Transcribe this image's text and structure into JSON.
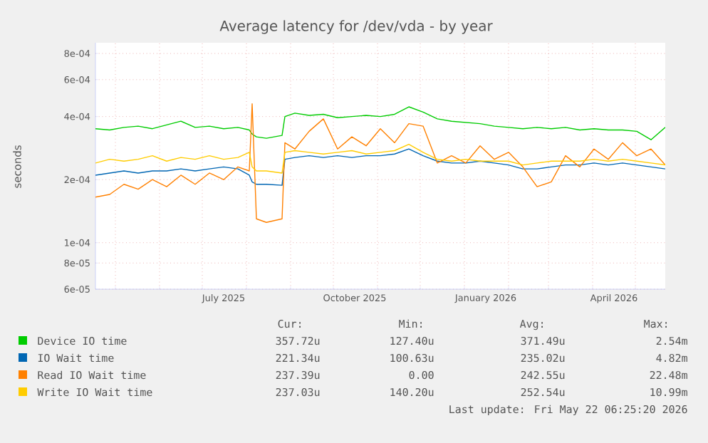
{
  "chart_data": {
    "type": "line",
    "title": "Average latency for /dev/vda - by year",
    "ylabel": "seconds",
    "log": true,
    "grid": true,
    "legend": "bottom",
    "xlim": [
      "2025-04-17",
      "2026-05-22"
    ],
    "ylim": [
      6e-05,
      0.0009
    ],
    "yticks": [
      {
        "value": 6e-05,
        "label": "6e-05"
      },
      {
        "value": 8e-05,
        "label": "8e-05"
      },
      {
        "value": 0.0001,
        "label": "1e-04"
      },
      {
        "value": 0.0002,
        "label": "2e-04"
      },
      {
        "value": 0.0004,
        "label": "4e-04"
      },
      {
        "value": 0.0006,
        "label": "6e-04"
      },
      {
        "value": 0.0008,
        "label": "8e-04"
      }
    ],
    "xticks": [
      {
        "value": "2025-05-01",
        "label": null
      },
      {
        "value": "2025-06-01",
        "label": null
      },
      {
        "value": "2025-07-01",
        "label": null
      },
      {
        "value": "2025-08-01",
        "label": null
      },
      {
        "value": "2025-09-01",
        "label": null
      },
      {
        "value": "2025-10-01",
        "label": null
      },
      {
        "value": "2025-11-01",
        "label": null
      },
      {
        "value": "2025-12-01",
        "label": null
      },
      {
        "value": "2026-01-01",
        "label": null
      },
      {
        "value": "2026-02-01",
        "label": null
      },
      {
        "value": "2026-03-01",
        "label": null
      },
      {
        "value": "2026-04-01",
        "label": null
      },
      {
        "value": "2026-05-01",
        "label": null
      },
      {
        "value": "2025-07-16",
        "label": "July 2025"
      },
      {
        "value": "2025-10-16",
        "label": "October 2025"
      },
      {
        "value": "2026-01-16",
        "label": "January 2026"
      },
      {
        "value": "2026-04-16",
        "label": "April 2026"
      }
    ],
    "x": [
      "2025-04-17",
      "2025-04-27",
      "2025-05-07",
      "2025-05-17",
      "2025-05-27",
      "2025-06-06",
      "2025-06-16",
      "2025-06-26",
      "2025-07-06",
      "2025-07-16",
      "2025-07-26",
      "2025-08-03",
      "2025-08-05",
      "2025-08-08",
      "2025-08-15",
      "2025-08-26",
      "2025-08-28",
      "2025-09-04",
      "2025-09-14",
      "2025-09-24",
      "2025-10-04",
      "2025-10-14",
      "2025-10-24",
      "2025-11-03",
      "2025-11-13",
      "2025-11-23",
      "2025-12-03",
      "2025-12-13",
      "2025-12-23",
      "2026-01-02",
      "2026-01-12",
      "2026-01-22",
      "2026-02-01",
      "2026-02-11",
      "2026-02-21",
      "2026-03-03",
      "2026-03-13",
      "2026-03-23",
      "2026-04-02",
      "2026-04-12",
      "2026-04-22",
      "2026-05-02",
      "2026-05-12",
      "2026-05-22"
    ],
    "series": [
      {
        "name": "Device IO time",
        "color": "#00cc00",
        "values": [
          0.00035,
          0.000345,
          0.000355,
          0.00036,
          0.00035,
          0.000365,
          0.00038,
          0.000355,
          0.00036,
          0.00035,
          0.000355,
          0.000345,
          0.00033,
          0.00032,
          0.000315,
          0.000325,
          0.0004,
          0.000415,
          0.000405,
          0.00041,
          0.000395,
          0.0004,
          0.000405,
          0.0004,
          0.00041,
          0.000445,
          0.00042,
          0.00039,
          0.00038,
          0.000375,
          0.00037,
          0.00036,
          0.000355,
          0.00035,
          0.000355,
          0.00035,
          0.000355,
          0.000345,
          0.00035,
          0.000345,
          0.000345,
          0.00034,
          0.00031,
          0.000355
        ]
      },
      {
        "name": "IO Wait time",
        "color": "#0066b3",
        "values": [
          0.00021,
          0.000215,
          0.00022,
          0.000215,
          0.00022,
          0.00022,
          0.000225,
          0.00022,
          0.000225,
          0.00023,
          0.000225,
          0.00021,
          0.000195,
          0.00019,
          0.00019,
          0.000188,
          0.00025,
          0.000255,
          0.00026,
          0.000255,
          0.00026,
          0.000255,
          0.00026,
          0.00026,
          0.000265,
          0.00028,
          0.00026,
          0.000245,
          0.00024,
          0.00024,
          0.000245,
          0.00024,
          0.000235,
          0.000225,
          0.000225,
          0.00023,
          0.000235,
          0.000235,
          0.00024,
          0.000235,
          0.00024,
          0.000235,
          0.00023,
          0.000225
        ]
      },
      {
        "name": "Read IO Wait time",
        "color": "#ff8000",
        "values": [
          0.000165,
          0.00017,
          0.00019,
          0.00018,
          0.0002,
          0.000185,
          0.00021,
          0.00019,
          0.000215,
          0.0002,
          0.00023,
          0.00022,
          0.00046,
          0.00013,
          0.000125,
          0.00013,
          0.0003,
          0.00028,
          0.00034,
          0.00039,
          0.00028,
          0.00032,
          0.00029,
          0.00035,
          0.0003,
          0.00037,
          0.00036,
          0.00024,
          0.00026,
          0.00024,
          0.00029,
          0.00025,
          0.00027,
          0.00023,
          0.000185,
          0.000195,
          0.00026,
          0.00023,
          0.00028,
          0.00025,
          0.0003,
          0.00026,
          0.00028,
          0.000235
        ]
      },
      {
        "name": "Write IO Wait time",
        "color": "#ffcc00",
        "values": [
          0.00024,
          0.00025,
          0.000245,
          0.00025,
          0.00026,
          0.000245,
          0.000255,
          0.00025,
          0.00026,
          0.00025,
          0.000255,
          0.00027,
          0.00023,
          0.00022,
          0.00022,
          0.000215,
          0.00027,
          0.000275,
          0.00027,
          0.000265,
          0.00027,
          0.000275,
          0.000265,
          0.00027,
          0.000275,
          0.000295,
          0.00027,
          0.00025,
          0.000245,
          0.00025,
          0.000245,
          0.000245,
          0.000245,
          0.000235,
          0.00024,
          0.000245,
          0.000245,
          0.000245,
          0.00025,
          0.000245,
          0.00025,
          0.000245,
          0.00024,
          0.000235
        ]
      }
    ],
    "annotations": [
      "Cur:",
      "Min:",
      "Avg:",
      "Max:",
      "357.72u",
      "127.40u",
      "371.49u",
      "2.54m",
      "221.34u",
      "100.63u",
      "235.02u",
      "4.82m",
      "237.39u",
      "0.00",
      "242.55u",
      "22.48m",
      "237.03u",
      "140.20u",
      "252.54u",
      "10.99m",
      "Last update: Fri May 22 06:25:20 2026"
    ]
  }
}
